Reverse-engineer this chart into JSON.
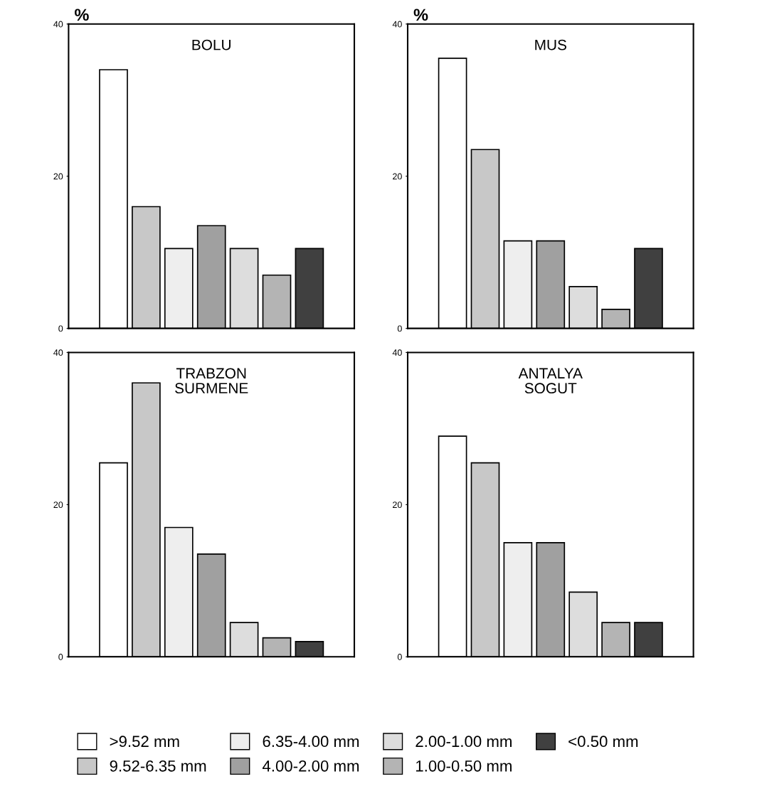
{
  "chart_data": [
    {
      "type": "bar",
      "title": "BOLU",
      "ylabel": "%",
      "categories": [
        null
      ],
      "ylim": [
        0,
        40
      ],
      "yticks": [
        0,
        20,
        40
      ],
      "legend": "bottom",
      "series": [
        {
          "name": ">9.52 mm",
          "color": "#ffffff",
          "values": [
            34
          ]
        },
        {
          "name": "9.52-6.35 mm",
          "color": "#c8c8c8",
          "values": [
            16
          ]
        },
        {
          "name": "6.35-4.00 mm",
          "color": "#eeeeee",
          "values": [
            10.5
          ]
        },
        {
          "name": "4.00-2.00 mm",
          "color": "#a0a0a0",
          "values": [
            13.5
          ]
        },
        {
          "name": "2.00-1.00 mm",
          "color": "#dddddd",
          "values": [
            10.5
          ]
        },
        {
          "name": "1.00-0.50 mm",
          "color": "#b4b4b4",
          "values": [
            7
          ]
        },
        {
          "name": "<0.50 mm",
          "color": "#404040",
          "values": [
            10.5
          ]
        }
      ]
    },
    {
      "type": "bar",
      "title": "MUS",
      "ylabel": "%",
      "categories": [
        null
      ],
      "ylim": [
        0,
        40
      ],
      "yticks": [
        0,
        20,
        40
      ],
      "legend": "bottom",
      "series": [
        {
          "name": ">9.52 mm",
          "color": "#ffffff",
          "values": [
            35.5
          ]
        },
        {
          "name": "9.52-6.35 mm",
          "color": "#c8c8c8",
          "values": [
            23.5
          ]
        },
        {
          "name": "6.35-4.00 mm",
          "color": "#eeeeee",
          "values": [
            11.5
          ]
        },
        {
          "name": "4.00-2.00 mm",
          "color": "#a0a0a0",
          "values": [
            11.5
          ]
        },
        {
          "name": "2.00-1.00 mm",
          "color": "#dddddd",
          "values": [
            5.5
          ]
        },
        {
          "name": "1.00-0.50 mm",
          "color": "#b4b4b4",
          "values": [
            2.5
          ]
        },
        {
          "name": "<0.50 mm",
          "color": "#404040",
          "values": [
            10.5
          ]
        }
      ]
    },
    {
      "type": "bar",
      "title": "TRABZON\nSURMENE",
      "categories": [
        null
      ],
      "ylim": [
        0,
        40
      ],
      "yticks": [
        0,
        20,
        40
      ],
      "legend": "bottom",
      "series": [
        {
          "name": ">9.52 mm",
          "color": "#ffffff",
          "values": [
            25.5
          ]
        },
        {
          "name": "9.52-6.35 mm",
          "color": "#c8c8c8",
          "values": [
            36
          ]
        },
        {
          "name": "6.35-4.00 mm",
          "color": "#eeeeee",
          "values": [
            17
          ]
        },
        {
          "name": "4.00-2.00 mm",
          "color": "#a0a0a0",
          "values": [
            13.5
          ]
        },
        {
          "name": "2.00-1.00 mm",
          "color": "#dddddd",
          "values": [
            4.5
          ]
        },
        {
          "name": "1.00-0.50 mm",
          "color": "#b4b4b4",
          "values": [
            2.5
          ]
        },
        {
          "name": "<0.50 mm",
          "color": "#404040",
          "values": [
            2
          ]
        }
      ]
    },
    {
      "type": "bar",
      "title": "ANTALYA\nSOGUT",
      "categories": [
        null
      ],
      "ylim": [
        0,
        40
      ],
      "yticks": [
        0,
        20,
        40
      ],
      "legend": "bottom",
      "series": [
        {
          "name": ">9.52 mm",
          "color": "#ffffff",
          "values": [
            29
          ]
        },
        {
          "name": "9.52-6.35 mm",
          "color": "#c8c8c8",
          "values": [
            25.5
          ]
        },
        {
          "name": "6.35-4.00 mm",
          "color": "#eeeeee",
          "values": [
            15
          ]
        },
        {
          "name": "4.00-2.00 mm",
          "color": "#a0a0a0",
          "values": [
            15
          ]
        },
        {
          "name": "2.00-1.00 mm",
          "color": "#dddddd",
          "values": [
            8.5
          ]
        },
        {
          "name": "1.00-0.50 mm",
          "color": "#b4b4b4",
          "values": [
            4.5
          ]
        },
        {
          "name": "<0.50 mm",
          "color": "#404040",
          "values": [
            4.5
          ]
        }
      ]
    }
  ]
}
